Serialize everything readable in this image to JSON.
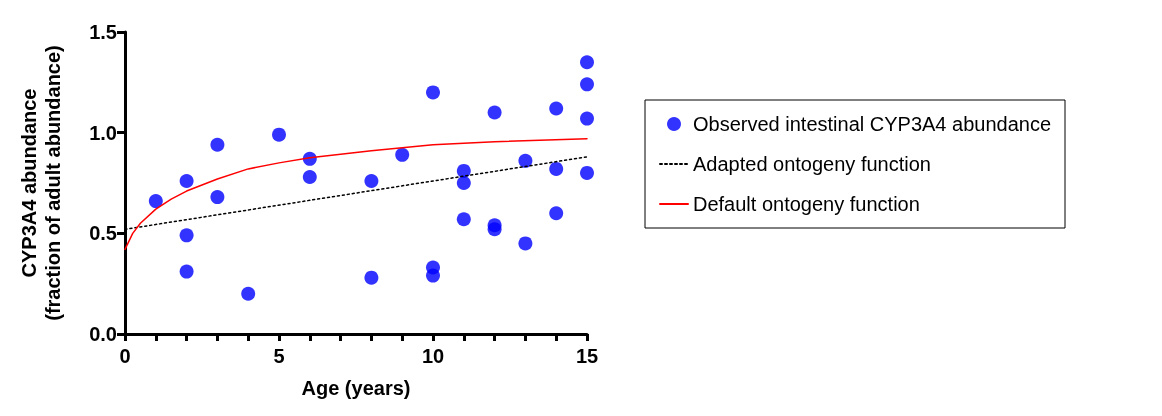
{
  "chart_data": {
    "type": "scatter",
    "xlabel": "Age (years)",
    "ylabel": "CYP3A4 abundance\n(fraction of adult abundance)",
    "xlim": [
      0,
      15
    ],
    "xticks": [
      0,
      5,
      10,
      15
    ],
    "ylim": [
      0,
      1.5
    ],
    "yticks": [
      {
        "value": 0,
        "label": "0.0"
      },
      {
        "value": 0.5,
        "label": "0.5"
      },
      {
        "value": 1,
        "label": "1.0"
      },
      {
        "value": 1.5,
        "label": "1.5"
      }
    ],
    "grid": false,
    "legend": "right",
    "marker": "circle",
    "series": [
      {
        "name": "Observed intestinal CYP3A4 abundance",
        "color": "#0000ff",
        "x": [
          1,
          2,
          2,
          2,
          3,
          3,
          4,
          5,
          6,
          6,
          8,
          8,
          9,
          10,
          10,
          10,
          11,
          11,
          11,
          12,
          12,
          12,
          13,
          13,
          14,
          14,
          14,
          15,
          15,
          15,
          15
        ],
        "values": [
          0.66,
          0.76,
          0.49,
          0.31,
          0.94,
          0.68,
          0.2,
          0.99,
          0.87,
          0.78,
          0.76,
          0.28,
          0.89,
          1.2,
          0.33,
          0.29,
          0.81,
          0.75,
          0.57,
          1.1,
          0.54,
          0.52,
          0.86,
          0.45,
          1.12,
          0.82,
          0.6,
          1.35,
          1.24,
          1.07,
          0.8
        ]
      },
      {
        "name": "Adapted ontogeny function",
        "type": "line",
        "color": "#000000",
        "line_style": "dotted",
        "marker": "none",
        "x": [
          0,
          15
        ],
        "values": [
          0.52,
          0.88
        ]
      },
      {
        "name": "Default ontogeny function",
        "type": "line",
        "color": "#ff0000",
        "line_style": "solid",
        "marker": "none",
        "x": [
          0,
          0.25,
          0.5,
          1,
          1.5,
          2,
          3,
          4,
          5,
          6,
          8,
          10,
          12,
          15
        ],
        "values": [
          0.42,
          0.5,
          0.55,
          0.62,
          0.67,
          0.71,
          0.77,
          0.82,
          0.85,
          0.875,
          0.91,
          0.94,
          0.955,
          0.97
        ]
      }
    ]
  }
}
